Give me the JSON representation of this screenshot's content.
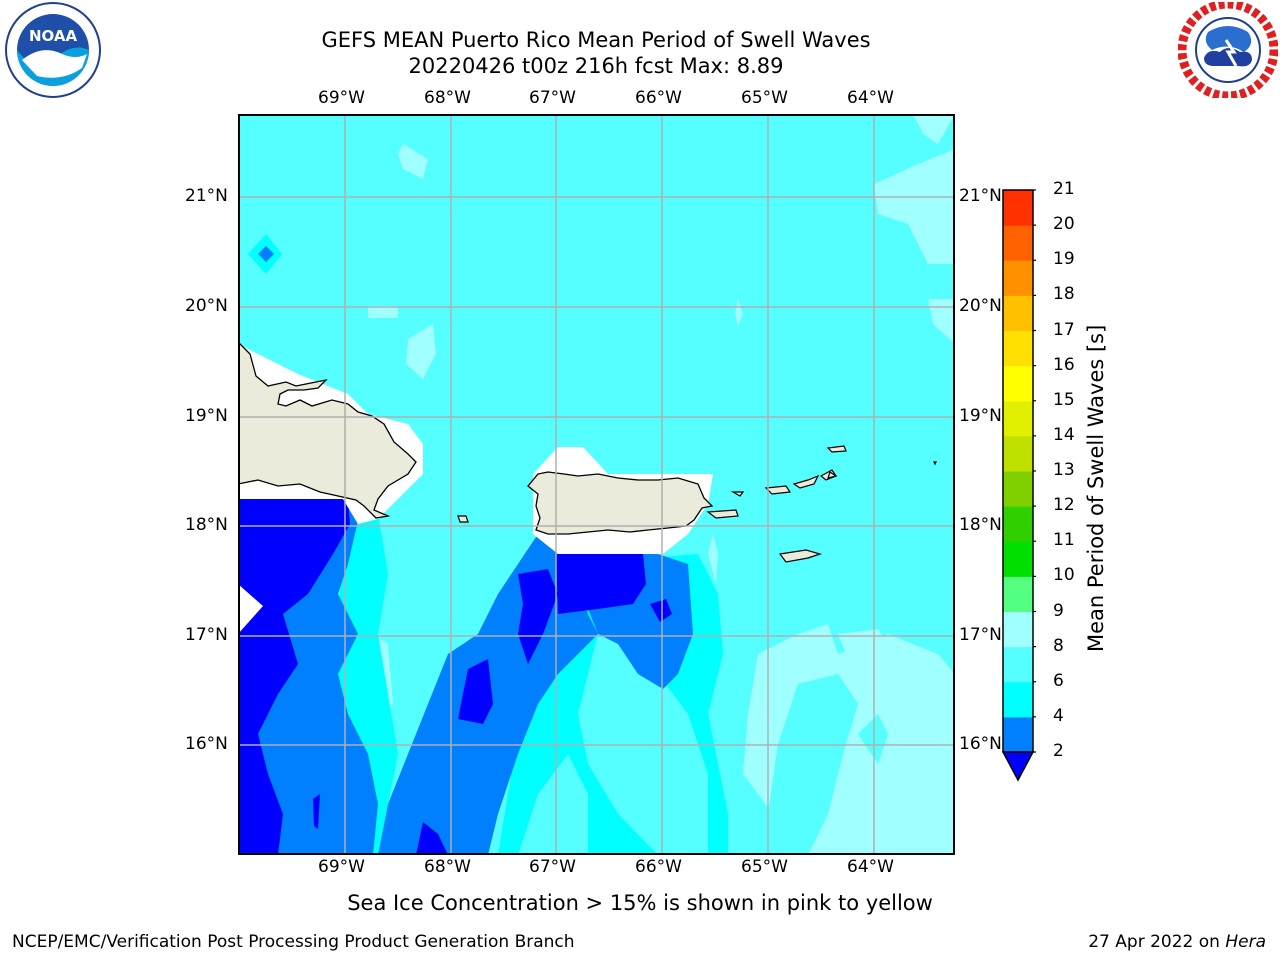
{
  "title": {
    "line1": "GEFS MEAN Puerto Rico Mean Period of Swell Waves",
    "line2": "20220426 t00z 216h fcst   Max: 8.89"
  },
  "logos": {
    "left": {
      "icon": "noaa-logo",
      "text": "NOAA",
      "ring_text": "NATIONAL OCEANIC AND ATMOSPHERIC ADMINISTRATION · U.S. DEPARTMENT OF COMMERCE"
    },
    "right": {
      "icon": "nws-logo",
      "ring_text": "NATIONAL WEATHER SERVICE"
    }
  },
  "map": {
    "lon_labels": [
      "69°W",
      "68°W",
      "67°W",
      "66°W",
      "65°W",
      "64°W"
    ],
    "lat_labels": [
      "21°N",
      "20°N",
      "19°N",
      "18°N",
      "17°N",
      "16°N"
    ],
    "colors": {
      "land": "#ebebdc",
      "coast": "#000000",
      "grid": "#b0b0b0",
      "band_2_4": "#0000ff",
      "band_4_6": "#0080ff",
      "band_6_8": "#00ffff",
      "band_8_9": "#55ffff",
      "band_9_10": "#a0ffff"
    }
  },
  "colorbar": {
    "label": "Mean Period of Swell Waves [s]",
    "ticks": [
      "2",
      "4",
      "6",
      "8",
      "9",
      "10",
      "11",
      "12",
      "13",
      "14",
      "15",
      "16",
      "17",
      "18",
      "19",
      "20",
      "21"
    ],
    "colors": [
      "#0080ff",
      "#00ffff",
      "#55ffff",
      "#a0ffff",
      "#55ff80",
      "#00e000",
      "#30d000",
      "#80d000",
      "#c0e000",
      "#e0f000",
      "#ffff00",
      "#ffe000",
      "#ffc000",
      "#ff9000",
      "#ff6000",
      "#ff3000",
      "#ff0000"
    ],
    "extend_color": "#0000ff"
  },
  "footer": {
    "subtitle": "Sea Ice Concentration > 15% is shown in pink to yellow",
    "credit": "NCEP/EMC/Verification Post Processing Product Generation Branch",
    "date_prefix": "27 Apr 2022 on",
    "date_host": "Hera"
  }
}
